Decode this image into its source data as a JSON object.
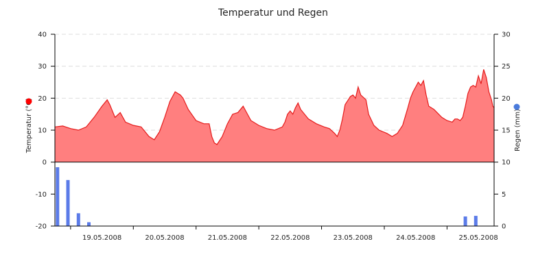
{
  "chart_data": {
    "type": "area",
    "title": "Temperatur und Regen",
    "colors": {
      "temperature_fill": "#ff7f7f",
      "temperature_line": "#e41a1a",
      "rain_bar": "#5b7be8",
      "temperature_marker": "#ff0000",
      "rain_marker": "#4a7bdc"
    },
    "x_axis": {
      "type": "date",
      "range": [
        "2008-05-18T18:00",
        "2008-05-25T18:00"
      ],
      "tick_labels": [
        "19.05.2008",
        "20.05.2008",
        "21.05.2008",
        "22.05.2008",
        "23.05.2008",
        "24.05.2008",
        "25.05.2008"
      ]
    },
    "y_left": {
      "label": "Temperatur (°C)",
      "range": [
        -20,
        40
      ],
      "ticks": [
        "-20",
        "-10",
        "0",
        "10",
        "20",
        "30",
        "40"
      ],
      "grid": true
    },
    "y_right": {
      "label": "Regen (mm)",
      "range": [
        0,
        30
      ],
      "ticks": [
        "0",
        "5",
        "10",
        "15",
        "20",
        "25",
        "30"
      ]
    },
    "series": [
      {
        "name": "Temperatur",
        "kind": "area",
        "axis": "left",
        "points": [
          [
            "2008-05-18T18:00",
            11.0
          ],
          [
            "2008-05-18T21:00",
            11.3
          ],
          [
            "2008-05-19T00:00",
            10.5
          ],
          [
            "2008-05-19T03:00",
            10.0
          ],
          [
            "2008-05-19T06:00",
            11.0
          ],
          [
            "2008-05-19T09:00",
            14.0
          ],
          [
            "2008-05-19T12:00",
            17.5
          ],
          [
            "2008-05-19T14:00",
            19.5
          ],
          [
            "2008-05-19T15:00",
            18.0
          ],
          [
            "2008-05-19T17:00",
            14.0
          ],
          [
            "2008-05-19T19:00",
            15.5
          ],
          [
            "2008-05-19T21:00",
            12.5
          ],
          [
            "2008-05-20T00:00",
            11.5
          ],
          [
            "2008-05-20T03:00",
            11.0
          ],
          [
            "2008-05-20T06:00",
            8.0
          ],
          [
            "2008-05-20T08:00",
            7.0
          ],
          [
            "2008-05-20T10:00",
            9.5
          ],
          [
            "2008-05-20T12:00",
            14.0
          ],
          [
            "2008-05-20T14:00",
            19.0
          ],
          [
            "2008-05-20T15:00",
            20.5
          ],
          [
            "2008-05-20T16:00",
            22.0
          ],
          [
            "2008-05-20T18:00",
            21.0
          ],
          [
            "2008-05-20T19:00",
            20.0
          ],
          [
            "2008-05-20T21:00",
            16.5
          ],
          [
            "2008-05-21T00:00",
            13.0
          ],
          [
            "2008-05-21T03:00",
            12.0
          ],
          [
            "2008-05-21T05:00",
            12.0
          ],
          [
            "2008-05-21T06:00",
            8.0
          ],
          [
            "2008-05-21T07:00",
            6.0
          ],
          [
            "2008-05-21T08:00",
            5.5
          ],
          [
            "2008-05-21T10:00",
            8.0
          ],
          [
            "2008-05-21T12:00",
            12.0
          ],
          [
            "2008-05-21T14:00",
            15.0
          ],
          [
            "2008-05-21T16:00",
            15.5
          ],
          [
            "2008-05-21T18:00",
            17.5
          ],
          [
            "2008-05-21T19:00",
            16.0
          ],
          [
            "2008-05-21T21:00",
            13.0
          ],
          [
            "2008-05-22T00:00",
            11.5
          ],
          [
            "2008-05-22T03:00",
            10.5
          ],
          [
            "2008-05-22T06:00",
            10.0
          ],
          [
            "2008-05-22T09:00",
            11.0
          ],
          [
            "2008-05-22T10:00",
            12.5
          ],
          [
            "2008-05-22T11:00",
            15.0
          ],
          [
            "2008-05-22T12:00",
            16.0
          ],
          [
            "2008-05-22T13:00",
            15.0
          ],
          [
            "2008-05-22T14:00",
            17.0
          ],
          [
            "2008-05-22T15:00",
            18.5
          ],
          [
            "2008-05-22T16:00",
            16.5
          ],
          [
            "2008-05-22T19:00",
            13.5
          ],
          [
            "2008-05-22T22:00",
            12.0
          ],
          [
            "2008-05-23T01:00",
            11.0
          ],
          [
            "2008-05-23T03:00",
            10.5
          ],
          [
            "2008-05-23T05:00",
            9.0
          ],
          [
            "2008-05-23T06:00",
            8.0
          ],
          [
            "2008-05-23T07:00",
            10.0
          ],
          [
            "2008-05-23T08:00",
            13.5
          ],
          [
            "2008-05-23T09:00",
            18.0
          ],
          [
            "2008-05-23T11:00",
            20.5
          ],
          [
            "2008-05-23T12:00",
            21.0
          ],
          [
            "2008-05-23T13:00",
            20.0
          ],
          [
            "2008-05-23T14:00",
            23.5
          ],
          [
            "2008-05-23T15:00",
            21.0
          ],
          [
            "2008-05-23T17:00",
            19.5
          ],
          [
            "2008-05-23T18:00",
            15.0
          ],
          [
            "2008-05-23T20:00",
            11.5
          ],
          [
            "2008-05-23T22:00",
            10.0
          ],
          [
            "2008-05-24T01:00",
            9.0
          ],
          [
            "2008-05-24T03:00",
            8.0
          ],
          [
            "2008-05-24T05:00",
            9.0
          ],
          [
            "2008-05-24T07:00",
            11.5
          ],
          [
            "2008-05-24T09:00",
            17.0
          ],
          [
            "2008-05-24T10:00",
            20.0
          ],
          [
            "2008-05-24T11:00",
            22.0
          ],
          [
            "2008-05-24T12:00",
            23.5
          ],
          [
            "2008-05-24T13:00",
            25.0
          ],
          [
            "2008-05-24T14:00",
            24.0
          ],
          [
            "2008-05-24T15:00",
            25.5
          ],
          [
            "2008-05-24T16:00",
            21.0
          ],
          [
            "2008-05-24T17:00",
            17.5
          ],
          [
            "2008-05-24T19:00",
            16.5
          ],
          [
            "2008-05-24T22:00",
            14.0
          ],
          [
            "2008-05-25T00:00",
            13.0
          ],
          [
            "2008-05-25T02:00",
            12.5
          ],
          [
            "2008-05-25T03:00",
            13.5
          ],
          [
            "2008-05-25T04:00",
            13.5
          ],
          [
            "2008-05-25T05:00",
            13.0
          ],
          [
            "2008-05-25T06:00",
            14.0
          ],
          [
            "2008-05-25T07:00",
            17.5
          ],
          [
            "2008-05-25T08:00",
            21.5
          ],
          [
            "2008-05-25T09:00",
            23.5
          ],
          [
            "2008-05-25T10:00",
            24.0
          ],
          [
            "2008-05-25T11:00",
            23.5
          ],
          [
            "2008-05-25T12:00",
            27.0
          ],
          [
            "2008-05-25T13:00",
            24.5
          ],
          [
            "2008-05-25T14:00",
            29.0
          ],
          [
            "2008-05-25T15:00",
            26.5
          ],
          [
            "2008-05-25T16:00",
            22.0
          ],
          [
            "2008-05-25T17:00",
            19.5
          ],
          [
            "2008-05-25T17:30",
            17.5
          ],
          [
            "2008-05-25T18:00",
            17.0
          ]
        ]
      },
      {
        "name": "Regen",
        "kind": "bar",
        "axis": "right",
        "points": [
          [
            "2008-05-18T19:00",
            9.2
          ],
          [
            "2008-05-18T23:00",
            7.2
          ],
          [
            "2008-05-19T03:00",
            2.0
          ],
          [
            "2008-05-19T07:00",
            0.6
          ],
          [
            "2008-05-25T07:00",
            1.5
          ],
          [
            "2008-05-25T11:00",
            1.6
          ]
        ]
      }
    ]
  }
}
